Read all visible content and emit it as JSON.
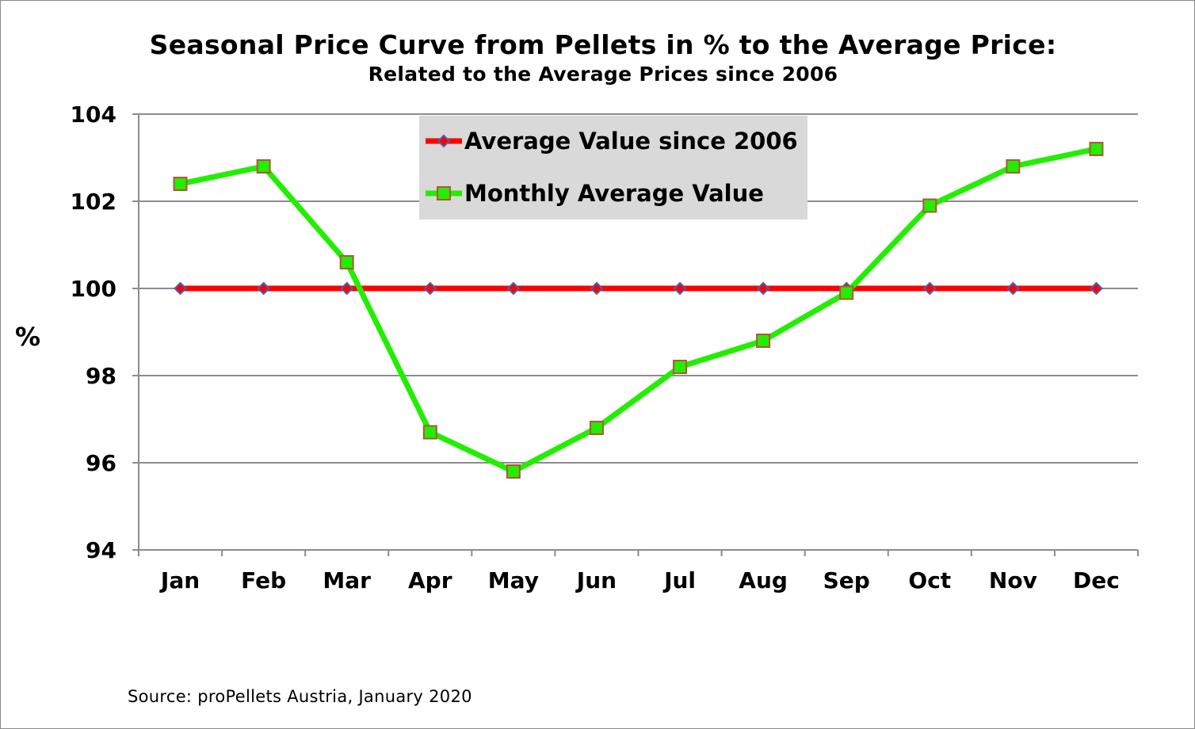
{
  "chart_data": {
    "type": "line",
    "title": "Seasonal Price Curve from Pellets in % to the Average Price:",
    "subtitle": "Related to the Average Prices since 2006",
    "xlabel": "",
    "ylabel": "%",
    "ylim": [
      94,
      104
    ],
    "yticks": [
      "94",
      "96",
      "98",
      "100",
      "102",
      "104"
    ],
    "categories": [
      "Jan",
      "Feb",
      "Mar",
      "Apr",
      "May",
      "Jun",
      "Jul",
      "Aug",
      "Sep",
      "Oct",
      "Nov",
      "Dec"
    ],
    "grid": "horizontal",
    "legend_position": "top-center",
    "series": [
      {
        "name": "Average Value since 2006",
        "color": "#ff0000",
        "marker": "diamond",
        "marker_color": "#4a5fb0",
        "values": [
          100,
          100,
          100,
          100,
          100,
          100,
          100,
          100,
          100,
          100,
          100,
          100
        ]
      },
      {
        "name": "Monthly Average Value",
        "color": "#22ee00",
        "marker": "square",
        "marker_color": "#22ee00",
        "values": [
          102.4,
          102.8,
          100.6,
          96.7,
          95.8,
          96.8,
          98.2,
          98.8,
          99.9,
          101.9,
          102.8,
          103.2
        ]
      }
    ],
    "source": "Source: proPellets Austria, January 2020"
  }
}
